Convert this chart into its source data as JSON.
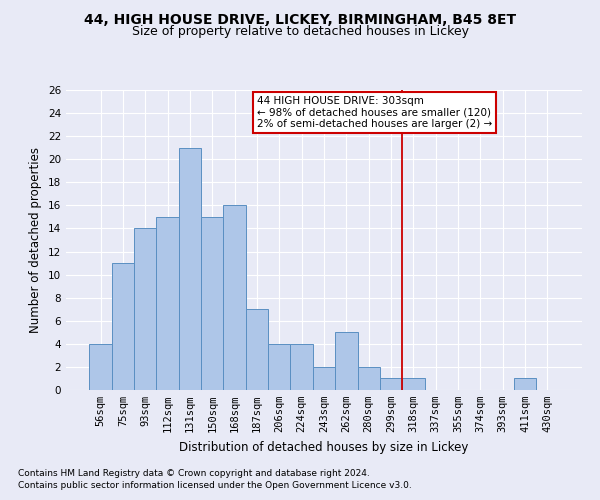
{
  "title1": "44, HIGH HOUSE DRIVE, LICKEY, BIRMINGHAM, B45 8ET",
  "title2": "Size of property relative to detached houses in Lickey",
  "xlabel": "Distribution of detached houses by size in Lickey",
  "ylabel": "Number of detached properties",
  "categories": [
    "56sqm",
    "75sqm",
    "93sqm",
    "112sqm",
    "131sqm",
    "150sqm",
    "168sqm",
    "187sqm",
    "206sqm",
    "224sqm",
    "243sqm",
    "262sqm",
    "280sqm",
    "299sqm",
    "318sqm",
    "337sqm",
    "355sqm",
    "374sqm",
    "393sqm",
    "411sqm",
    "430sqm"
  ],
  "values": [
    4,
    11,
    14,
    15,
    21,
    15,
    16,
    7,
    4,
    4,
    2,
    5,
    2,
    1,
    1,
    0,
    0,
    0,
    0,
    1,
    0
  ],
  "bar_color": "#aec6e8",
  "bar_edge_color": "#5a8fc2",
  "background_color": "#e8eaf6",
  "grid_color": "#ffffff",
  "vline_x": 13.5,
  "vline_color": "#cc0000",
  "annotation_title": "44 HIGH HOUSE DRIVE: 303sqm",
  "annotation_line1": "← 98% of detached houses are smaller (120)",
  "annotation_line2": "2% of semi-detached houses are larger (2) →",
  "annotation_box_color": "#ffffff",
  "annotation_box_edge": "#cc0000",
  "ylim": [
    0,
    26
  ],
  "yticks": [
    0,
    2,
    4,
    6,
    8,
    10,
    12,
    14,
    16,
    18,
    20,
    22,
    24,
    26
  ],
  "footer1": "Contains HM Land Registry data © Crown copyright and database right 2024.",
  "footer2": "Contains public sector information licensed under the Open Government Licence v3.0.",
  "title1_fontsize": 10,
  "title2_fontsize": 9,
  "xlabel_fontsize": 8.5,
  "ylabel_fontsize": 8.5,
  "tick_fontsize": 7.5,
  "annotation_fontsize": 7.5,
  "footer_fontsize": 6.5
}
